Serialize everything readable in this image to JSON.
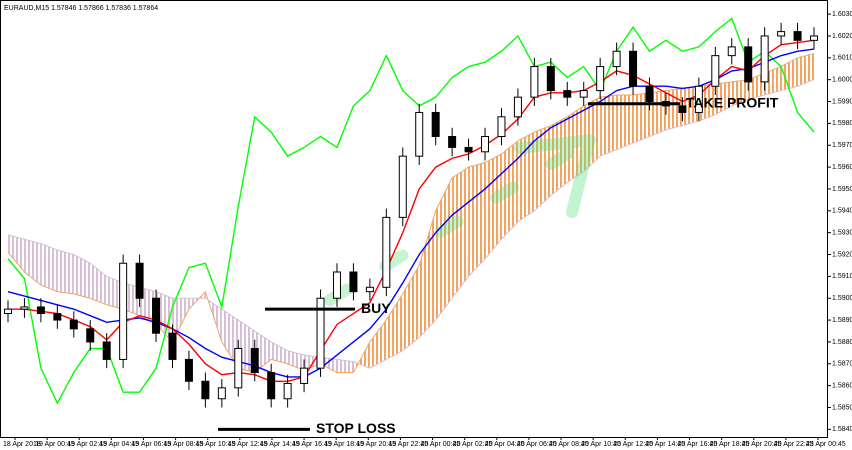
{
  "chart_data": {
    "type": "candlestick",
    "title": "EURAUD,M15  1.57846 1.57866 1.57836 1.57864",
    "x_labels": [
      "18 Apr 2018",
      "19 Apr 00:45",
      "19 Apr 02:45",
      "19 Apr 04:45",
      "19 Apr 06:45",
      "19 Apr 08:45",
      "19 Apr 10:45",
      "19 Apr 12:45",
      "19 Apr 14:45",
      "19 Apr 16:45",
      "19 Apr 18:45",
      "19 Apr 20:45",
      "19 Apr 22:45",
      "20 Apr 00:45",
      "20 Apr 02:45",
      "20 Apr 04:45",
      "20 Apr 06:45",
      "20 Apr 08:45",
      "20 Apr 10:45",
      "20 Apr 12:45",
      "20 Apr 14:45",
      "20 Apr 16:45",
      "20 Apr 18:45",
      "20 Apr 20:45",
      "20 Apr 22:45",
      "23 Apr 00:45"
    ],
    "open": [
      1.5893,
      1.5895,
      1.5896,
      1.5893,
      1.589,
      1.5886,
      1.588,
      1.5872,
      1.5916,
      1.59,
      1.5884,
      1.5872,
      1.5862,
      1.5854,
      1.5859,
      1.5877,
      1.5866,
      1.5854,
      1.5861,
      1.5868,
      1.59,
      1.5912,
      1.5903,
      1.5905,
      1.5937,
      1.5965,
      1.5985,
      1.5974,
      1.5969,
      1.5967,
      1.5974,
      1.5983,
      1.5992,
      1.6006,
      1.5995,
      1.5992,
      1.5995,
      1.6006,
      1.6013,
      1.5997,
      1.599,
      1.5988,
      1.5985,
      1.5997,
      1.6011,
      1.6015,
      1.5999,
      1.602,
      1.6022,
      1.6018
    ],
    "high": [
      1.5899,
      1.59,
      1.59,
      1.5897,
      1.5894,
      1.589,
      1.5884,
      1.592,
      1.592,
      1.5904,
      1.5888,
      1.5876,
      1.5866,
      1.5863,
      1.5881,
      1.5881,
      1.587,
      1.5865,
      1.5872,
      1.5904,
      1.5916,
      1.5916,
      1.5909,
      1.5941,
      1.5969,
      1.5989,
      1.5989,
      1.5978,
      1.5973,
      1.5978,
      1.5987,
      1.5996,
      1.601,
      1.601,
      1.5999,
      1.5999,
      1.601,
      1.6017,
      1.6017,
      1.6001,
      1.5994,
      1.5992,
      1.6001,
      1.6015,
      1.6019,
      1.6019,
      1.6024,
      1.6026,
      1.6026,
      1.6024
    ],
    "low": [
      1.5889,
      1.5891,
      1.5889,
      1.5886,
      1.5882,
      1.5876,
      1.5868,
      1.5868,
      1.5896,
      1.588,
      1.5868,
      1.5858,
      1.585,
      1.585,
      1.5855,
      1.5862,
      1.585,
      1.585,
      1.5857,
      1.5864,
      1.5896,
      1.5899,
      1.5899,
      1.5901,
      1.5933,
      1.5961,
      1.597,
      1.5965,
      1.5963,
      1.5963,
      1.597,
      1.5979,
      1.5988,
      1.5991,
      1.5988,
      1.5988,
      1.5991,
      1.6002,
      1.5993,
      1.5986,
      1.5984,
      1.5981,
      1.5981,
      1.5993,
      1.6007,
      1.5995,
      1.5995,
      1.6016,
      1.6014,
      1.6014
    ],
    "close": [
      1.5895,
      1.5896,
      1.5893,
      1.589,
      1.5886,
      1.588,
      1.5872,
      1.5916,
      1.59,
      1.5884,
      1.5872,
      1.5862,
      1.5854,
      1.5859,
      1.5877,
      1.5866,
      1.5854,
      1.5861,
      1.5868,
      1.59,
      1.5912,
      1.5903,
      1.5905,
      1.5937,
      1.5965,
      1.5985,
      1.5974,
      1.5969,
      1.5967,
      1.5974,
      1.5983,
      1.5992,
      1.6006,
      1.5995,
      1.5992,
      1.5995,
      1.6006,
      1.6013,
      1.5997,
      1.599,
      1.5988,
      1.5985,
      1.5997,
      1.6011,
      1.6015,
      1.5999,
      1.602,
      1.6022,
      1.6018,
      1.602
    ],
    "up_color": "#ffffff",
    "down_color": "#000000",
    "cloud": {
      "span_a": [
        1.5921,
        1.5912,
        1.5906,
        1.5903,
        1.5902,
        1.59,
        1.5897,
        1.5895,
        1.5892,
        1.5888,
        1.588,
        1.5895,
        1.5903,
        1.588,
        1.5868,
        1.5866,
        1.5872,
        1.587,
        1.5867,
        1.587,
        1.5866,
        1.5866,
        1.588,
        1.589,
        1.5902,
        1.5915,
        1.594,
        1.5955,
        1.596,
        1.5962,
        1.5966,
        1.5972,
        1.5976,
        1.5979,
        1.5983,
        1.5988,
        1.5992,
        1.5993,
        1.5993,
        1.5994,
        1.5995,
        1.5996,
        1.5997,
        1.5998,
        1.5999,
        1.6,
        1.6003,
        1.6006,
        1.601,
        1.6012
      ],
      "span_b": [
        1.5929,
        1.5927,
        1.5925,
        1.5922,
        1.592,
        1.5916,
        1.591,
        1.5907,
        1.5905,
        1.5903,
        1.59,
        1.59,
        1.59,
        1.5895,
        1.589,
        1.5885,
        1.588,
        1.5876,
        1.5874,
        1.5873,
        1.5872,
        1.5871,
        1.5868,
        1.5872,
        1.5876,
        1.5882,
        1.589,
        1.59,
        1.591,
        1.5918,
        1.5927,
        1.5935,
        1.594,
        1.5947,
        1.5953,
        1.5958,
        1.5965,
        1.5968,
        1.5971,
        1.5974,
        1.5977,
        1.5979,
        1.5981,
        1.5984,
        1.5988,
        1.5991,
        1.5993,
        1.5995,
        1.5997,
        1.6
      ],
      "up_color": "#f4a460",
      "down_color": "#d8bfd8"
    },
    "series": [
      {
        "color": "#00ff00",
        "values": [
          1.5918,
          1.5909,
          1.5868,
          1.5852,
          1.5866,
          1.5877,
          1.5877,
          1.5857,
          1.5857,
          1.5868,
          1.5896,
          1.5914,
          1.5916,
          1.5896,
          1.5942,
          1.5983,
          1.5976,
          1.5965,
          1.5969,
          1.5974,
          1.5969,
          1.5988,
          1.5995,
          1.6011,
          1.5995,
          1.5988,
          1.5992,
          1.6001,
          1.6006,
          1.6008,
          1.6013,
          1.602,
          1.6006,
          1.6008,
          1.6001,
          1.6006,
          1.5995,
          1.6013,
          1.6024,
          1.6013,
          1.6018,
          1.6013,
          1.6015,
          1.6022,
          1.6028,
          1.6008,
          1.6013,
          1.6006,
          1.5985,
          1.5976
        ]
      },
      {
        "color": "#0000ff",
        "values": [
          1.5903,
          1.5901,
          1.5899,
          1.5897,
          1.5895,
          1.5892,
          1.5889,
          1.589,
          1.5891,
          1.5889,
          1.5886,
          1.5882,
          1.5877,
          1.5873,
          1.5871,
          1.5869,
          1.5866,
          1.5864,
          1.5864,
          1.5868,
          1.5874,
          1.588,
          1.5886,
          1.5895,
          1.5907,
          1.592,
          1.593,
          1.5938,
          1.5944,
          1.595,
          1.5957,
          1.5964,
          1.5972,
          1.5978,
          1.5982,
          1.5986,
          1.599,
          1.5995,
          1.5997,
          1.5997,
          1.5997,
          1.5996,
          1.5997,
          1.6,
          1.6004,
          1.6005,
          1.6008,
          1.6011,
          1.6013,
          1.6014
        ]
      },
      {
        "color": "#ff0000",
        "values": [
          1.5895,
          1.5895,
          1.5894,
          1.5893,
          1.589,
          1.5887,
          1.5881,
          1.5889,
          1.5892,
          1.589,
          1.5886,
          1.5879,
          1.587,
          1.5865,
          1.5866,
          1.5865,
          1.5862,
          1.5862,
          1.5864,
          1.5876,
          1.5888,
          1.5893,
          1.5898,
          1.5913,
          1.593,
          1.595,
          1.596,
          1.5964,
          1.5966,
          1.597,
          1.5975,
          1.5982,
          1.5992,
          1.5994,
          1.5994,
          1.5995,
          1.5999,
          1.6004,
          1.6002,
          1.5998,
          1.5994,
          1.599,
          1.5993,
          1.6,
          1.6006,
          1.6004,
          1.6011,
          1.6016,
          1.6017,
          1.6018
        ]
      }
    ],
    "annotations": [
      {
        "text": "BUY",
        "value": 1.5895
      },
      {
        "text": "STOP LOSS",
        "value": 1.584
      },
      {
        "text": "TAKE PROFIT",
        "value": 1.5989
      }
    ],
    "ylim": [
      1.58365,
      1.6036
    ],
    "yticks": [
      {
        "value": 1.603,
        "label": "1.60300"
      },
      {
        "value": 1.602,
        "label": "1.60200"
      },
      {
        "value": 1.601,
        "label": "1.60100"
      },
      {
        "value": 1.6,
        "label": "1.60000"
      },
      {
        "value": 1.599,
        "label": "1.59900"
      },
      {
        "value": 1.598,
        "label": "1.59800"
      },
      {
        "value": 1.597,
        "label": "1.59700"
      },
      {
        "value": 1.596,
        "label": "1.59600"
      },
      {
        "value": 1.595,
        "label": "1.59500"
      },
      {
        "value": 1.594,
        "label": "1.59400"
      },
      {
        "value": 1.593,
        "label": "1.59300"
      },
      {
        "value": 1.592,
        "label": "1.59200"
      },
      {
        "value": 1.591,
        "label": "1.59100"
      },
      {
        "value": 1.59,
        "label": "1.59000"
      },
      {
        "value": 1.589,
        "label": "1.58900"
      },
      {
        "value": 1.588,
        "label": "1.58800"
      },
      {
        "value": 1.587,
        "label": "1.58700"
      },
      {
        "value": 1.586,
        "label": "1.58600"
      },
      {
        "value": 1.585,
        "label": "1.58500"
      },
      {
        "value": 1.584,
        "label": "1.58400"
      }
    ],
    "grid": false
  }
}
